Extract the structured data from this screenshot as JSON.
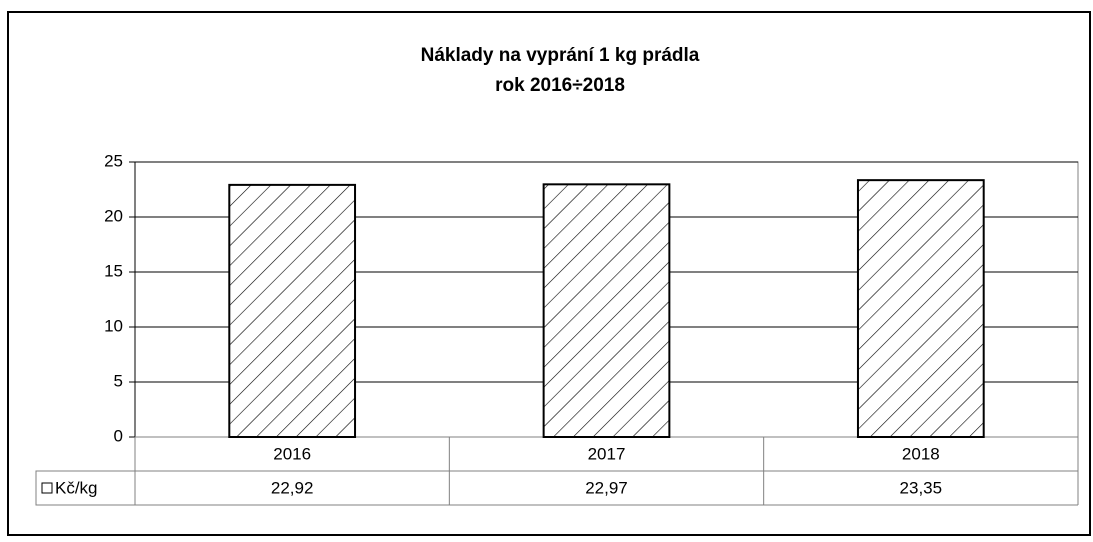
{
  "chart_data": {
    "type": "bar",
    "title": "Náklady na vyprání 1 kg prádla",
    "subtitle": "rok 2016÷2018",
    "categories": [
      "2016",
      "2017",
      "2018"
    ],
    "series": [
      {
        "name": "Kč/kg",
        "color": "#000000",
        "values": [
          22.92,
          22.97,
          23.35
        ],
        "value_labels": [
          "22,92",
          "22,97",
          "23,35"
        ]
      }
    ],
    "ylim": [
      0,
      25
    ],
    "yticks": [
      0,
      5,
      10,
      15,
      20,
      25
    ],
    "grid": true
  }
}
